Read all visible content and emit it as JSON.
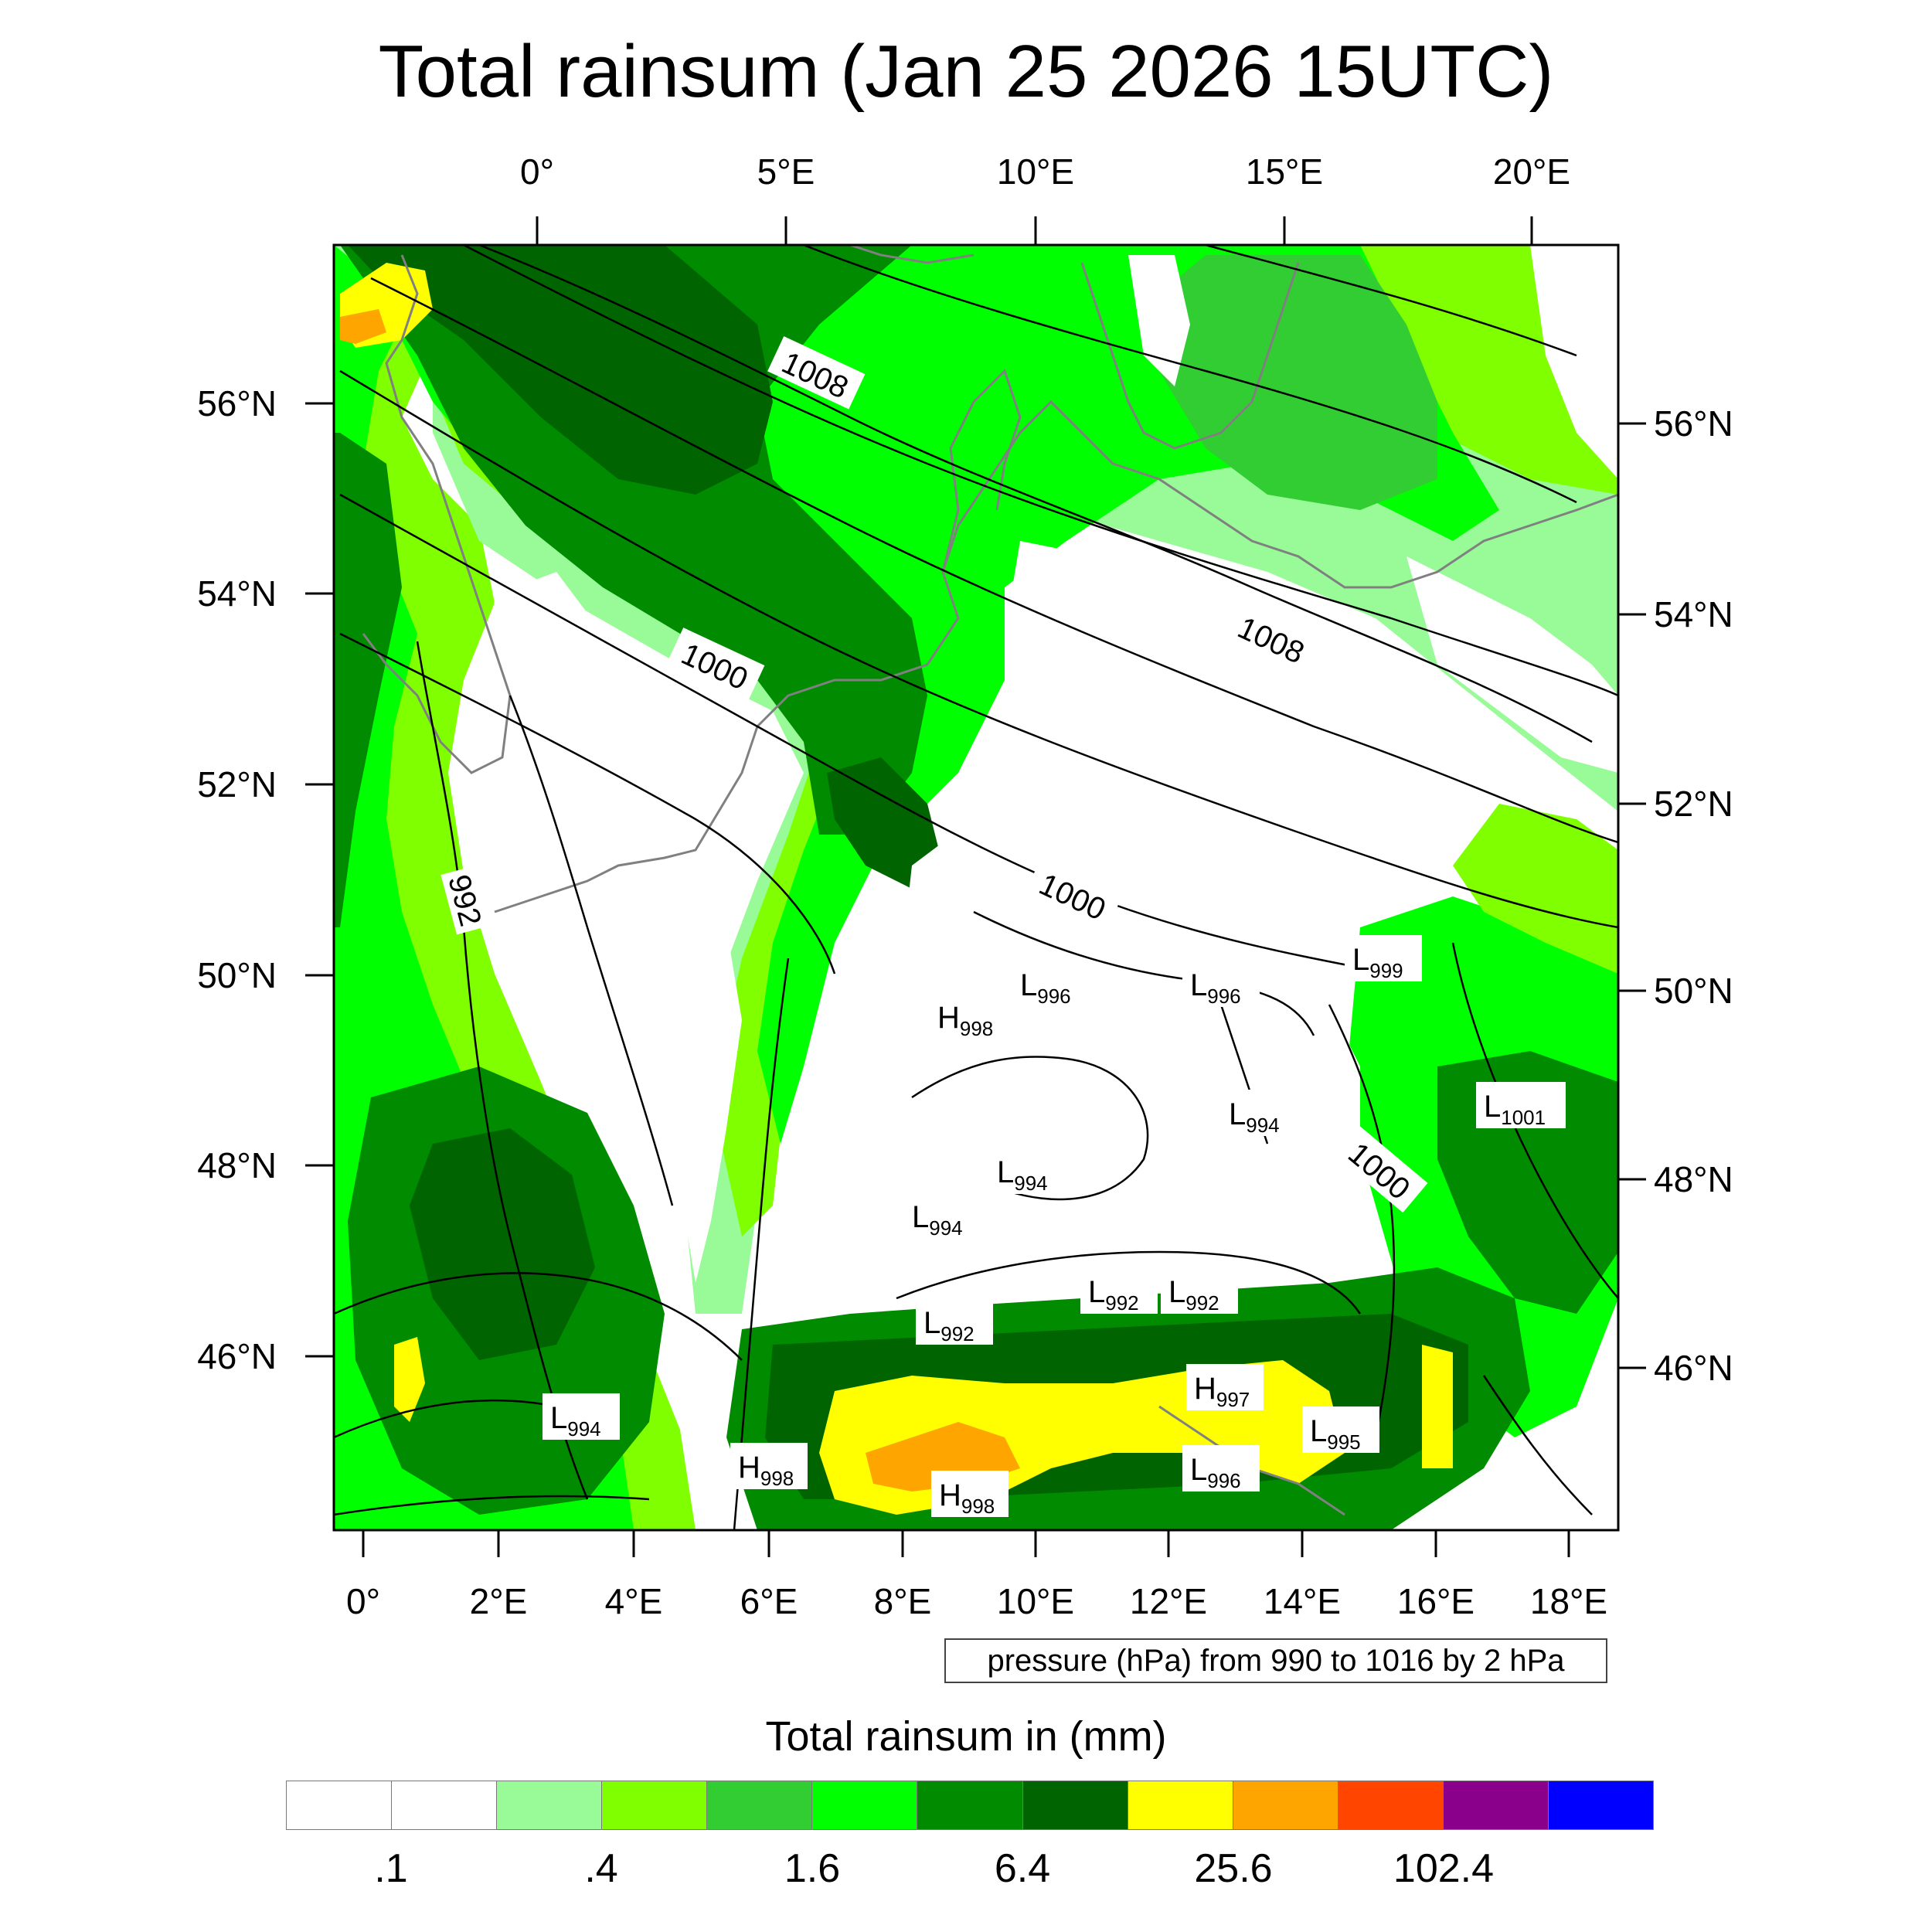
{
  "title": "Total rainsum (Jan 25 2026 15UTC)",
  "info_box": "pressure (hPa) from 990 to 1016 by 2 hPa",
  "legend_title": "Total rainsum in (mm)",
  "top_axis_labels": [
    "0°",
    "5°E",
    "10°E",
    "15°E",
    "20°E"
  ],
  "bottom_axis_labels": [
    "0°",
    "2°E",
    "4°E",
    "6°E",
    "8°E",
    "10°E",
    "12°E",
    "14°E",
    "16°E",
    "18°E"
  ],
  "left_axis_labels": [
    "56°N",
    "54°N",
    "52°N",
    "50°N",
    "48°N",
    "46°N"
  ],
  "right_axis_labels": [
    "56°N",
    "54°N",
    "52°N",
    "50°N",
    "48°N",
    "46°N"
  ],
  "isobar_labels": [
    "1008",
    "1008",
    "1000",
    "1000",
    "1000",
    "992"
  ],
  "pressure_centers": [
    {
      "type": "L",
      "value": "999"
    },
    {
      "type": "L",
      "value": "996"
    },
    {
      "type": "L",
      "value": "996"
    },
    {
      "type": "H",
      "value": "998"
    },
    {
      "type": "L",
      "value": "1001"
    },
    {
      "type": "L",
      "value": "994"
    },
    {
      "type": "L",
      "value": "994"
    },
    {
      "type": "L",
      "value": "994"
    },
    {
      "type": "L",
      "value": "992"
    },
    {
      "type": "L",
      "value": "992"
    },
    {
      "type": "L",
      "value": "992"
    },
    {
      "type": "H",
      "value": "997"
    },
    {
      "type": "L",
      "value": "995"
    },
    {
      "type": "L",
      "value": "994"
    },
    {
      "type": "H",
      "value": "998"
    },
    {
      "type": "H",
      "value": "998"
    },
    {
      "type": "L",
      "value": "996"
    }
  ],
  "colorbar": {
    "colors": [
      "#ffffff",
      "#ffffff",
      "#98fb98",
      "#7fff00",
      "#32cd32",
      "#00ff00",
      "#008b00",
      "#006400",
      "#ffff00",
      "#ffa500",
      "#ff4500",
      "#8b008b",
      "#0000ff"
    ],
    "labels": [
      ".1",
      ".4",
      "1.6",
      "6.4",
      "25.6",
      "102.4"
    ]
  },
  "map_colors": {
    "light_green": "#98fb98",
    "chartreuse": "#7fff00",
    "lime_green": "#32cd32",
    "green": "#00ff00",
    "dark_green": "#008b00",
    "darker_green": "#006400",
    "yellow": "#ffff00",
    "orange": "#ffa500",
    "coast": "#808080",
    "isobar": "#000000"
  }
}
